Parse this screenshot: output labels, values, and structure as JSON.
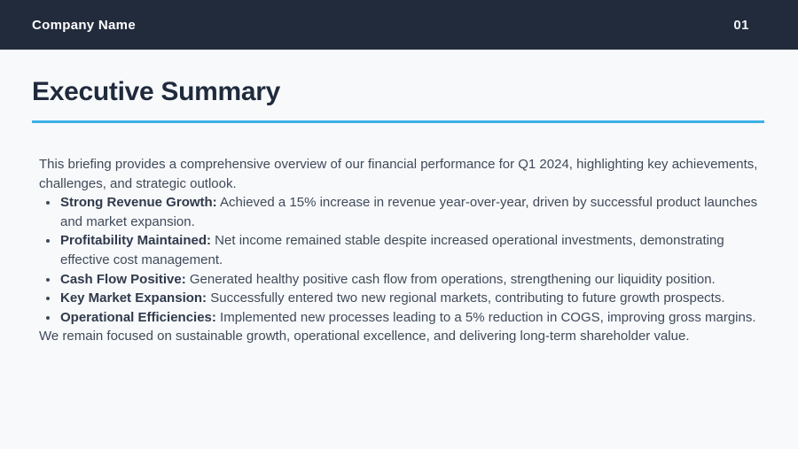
{
  "page": {
    "background_color": "#f8f9fb",
    "header_bar_color": "#212b3c",
    "accent_line_color": "#3fb1e8",
    "body_text_color": "#3f4a59"
  },
  "header": {
    "company_name": "Company Name",
    "page_number": "01"
  },
  "title": "Executive Summary",
  "content": {
    "intro": "This briefing provides a comprehensive overview of our financial performance for Q1 2024, highlighting key achievements, challenges, and strategic outlook.",
    "bullets": [
      {
        "label": "Strong Revenue Growth:",
        "text": " Achieved a 15% increase in revenue year-over-year, driven by successful product launches and market expansion."
      },
      {
        "label": "Profitability Maintained:",
        "text": " Net income remained stable despite increased operational investments, demonstrating effective cost management."
      },
      {
        "label": "Cash Flow Positive:",
        "text": " Generated healthy positive cash flow from operations, strengthening our liquidity position."
      },
      {
        "label": "Key Market Expansion:",
        "text": " Successfully entered two new regional markets, contributing to future growth prospects."
      },
      {
        "label": "Operational Efficiencies:",
        "text": " Implemented new processes leading to a 5% reduction in COGS, improving gross margins."
      }
    ],
    "outro": "We remain focused on sustainable growth, operational excellence, and delivering long-term shareholder value."
  }
}
